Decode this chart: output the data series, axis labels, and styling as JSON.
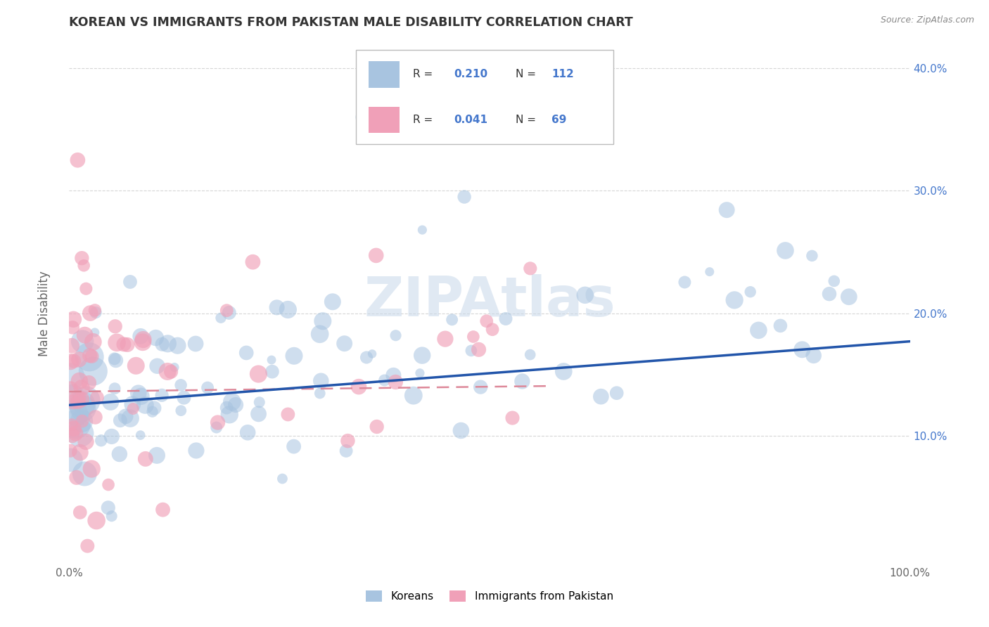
{
  "title": "KOREAN VS IMMIGRANTS FROM PAKISTAN MALE DISABILITY CORRELATION CHART",
  "source": "Source: ZipAtlas.com",
  "ylabel": "Male Disability",
  "xlim": [
    0.0,
    1.0
  ],
  "ylim": [
    -0.005,
    0.425
  ],
  "korean_R": 0.21,
  "korean_N": 112,
  "pakistan_R": 0.041,
  "pakistan_N": 69,
  "korean_color": "#a8c4e0",
  "pakistan_color": "#f0a0b8",
  "korean_line_color": "#2255aa",
  "pakistan_line_color": "#dd8899",
  "watermark": "ZIPAtlas",
  "watermark_color": "#c8d8ea",
  "background_color": "#ffffff",
  "grid_color": "#cccccc",
  "title_color": "#333333",
  "legend_color": "#4477cc",
  "seed": 12345
}
